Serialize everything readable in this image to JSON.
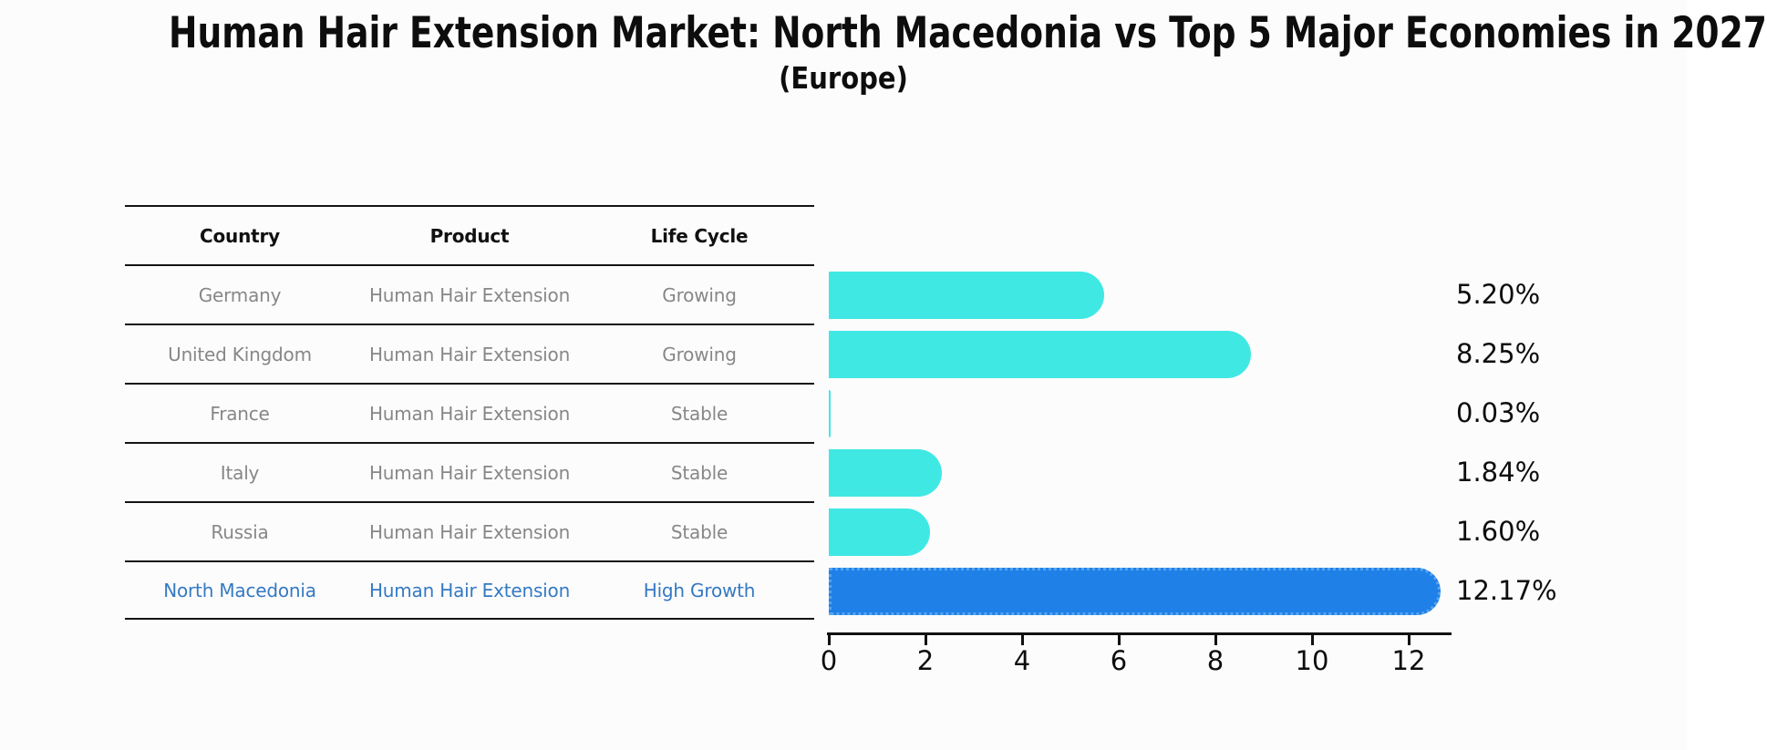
{
  "header": {
    "title": "Human Hair Extension Market: North Macedonia vs Top 5 Major Economies in 2027",
    "subtitle": "(Europe)"
  },
  "table": {
    "headers": [
      "Country",
      "Product",
      "Life Cycle"
    ],
    "rows": [
      {
        "country": "Germany",
        "product": "Human Hair Extension",
        "life_cycle": "Growing",
        "highlight": false
      },
      {
        "country": "United Kingdom",
        "product": "Human Hair Extension",
        "life_cycle": "Growing",
        "highlight": false
      },
      {
        "country": "France",
        "product": "Human Hair Extension",
        "life_cycle": "Stable",
        "highlight": false
      },
      {
        "country": "Italy",
        "product": "Human Hair Extension",
        "life_cycle": "Stable",
        "highlight": false
      },
      {
        "country": "Russia",
        "product": "Human Hair Extension",
        "life_cycle": "Stable",
        "highlight": false
      },
      {
        "country": "North Macedonia",
        "product": "Human Hair Extension",
        "life_cycle": "High Growth",
        "highlight": true
      }
    ]
  },
  "chart_data": {
    "type": "bar",
    "orientation": "horizontal",
    "title": "Human Hair Extension Market: North Macedonia vs Top 5 Major Economies in 2027 (Europe)",
    "categories": [
      "Germany",
      "United Kingdom",
      "France",
      "Italy",
      "Russia",
      "North Macedonia"
    ],
    "values": [
      5.2,
      8.25,
      0.03,
      1.84,
      1.6,
      12.17
    ],
    "value_labels": [
      "5.20%",
      "8.25%",
      "0.03%",
      "1.84%",
      "1.60%",
      "12.17%"
    ],
    "highlight_index": 5,
    "xlabel": "",
    "ylabel": "",
    "xticks": [
      0,
      2,
      4,
      6,
      8,
      10,
      12
    ],
    "xlim": [
      0,
      12.85
    ],
    "grid": false,
    "legend": null
  },
  "colors": {
    "bar_color": "#40e8e4",
    "highlight_bar_color": "#1f80e8",
    "highlight_border_color": "#56a5ef",
    "table_text": "#878787",
    "table_header_text": "#111111",
    "highlight_text": "#3579c2",
    "axis": "#111111",
    "value_label": "#0d0d0d"
  }
}
